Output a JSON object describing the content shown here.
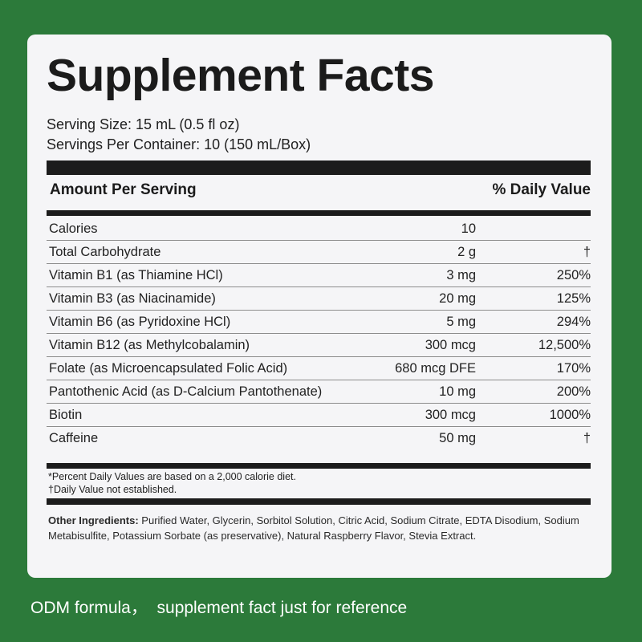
{
  "colors": {
    "background": "#2c7a3a",
    "panel": "#f5f5f7",
    "rule": "#1c1c1c",
    "caption_text": "#ffffff"
  },
  "title": "Supplement Facts",
  "serving_size": "Serving Size: 15 mL (0.5 fl oz)",
  "servings_per_container": "Servings Per Container: 10 (150 mL/Box)",
  "table": {
    "header_amount": "Amount Per Serving",
    "header_dv": "% Daily Value",
    "rows": [
      {
        "name": "Calories",
        "amount": "10",
        "dv": ""
      },
      {
        "name": "Total Carbohydrate",
        "amount": "2 g",
        "dv": "†"
      },
      {
        "name": "Vitamin B1 (as Thiamine HCl)",
        "amount": "3 mg",
        "dv": "250%"
      },
      {
        "name": "Vitamin B3 (as Niacinamide)",
        "amount": "20 mg",
        "dv": "125%"
      },
      {
        "name": "Vitamin B6 (as Pyridoxine HCl)",
        "amount": "5 mg",
        "dv": "294%"
      },
      {
        "name": "Vitamin B12 (as Methylcobalamin)",
        "amount": "300 mcg",
        "dv": "12,500%"
      },
      {
        "name": "Folate (as Microencapsulated Folic Acid)",
        "amount": "680 mcg DFE",
        "dv": "170%"
      },
      {
        "name": "Pantothenic Acid (as D-Calcium Pantothenate)",
        "amount": "10 mg",
        "dv": "200%"
      },
      {
        "name": "Biotin",
        "amount": "300 mcg",
        "dv": "1000%"
      },
      {
        "name": "Caffeine",
        "amount": "50 mg",
        "dv": "†"
      }
    ]
  },
  "footnote_1": "*Percent Daily Values are based on a 2,000 calorie diet.",
  "footnote_2": "†Daily Value not established.",
  "ingredients_label": "Other Ingredients:",
  "ingredients_text": " Purified Water, Glycerin, Sorbitol Solution, Citric Acid, Sodium Citrate, EDTA Disodium, Sodium Metabisulfite, Potassium Sorbate (as preservative), Natural Raspberry Flavor, Stevia Extract.",
  "caption": "ODM formula，  supplement fact just for reference"
}
